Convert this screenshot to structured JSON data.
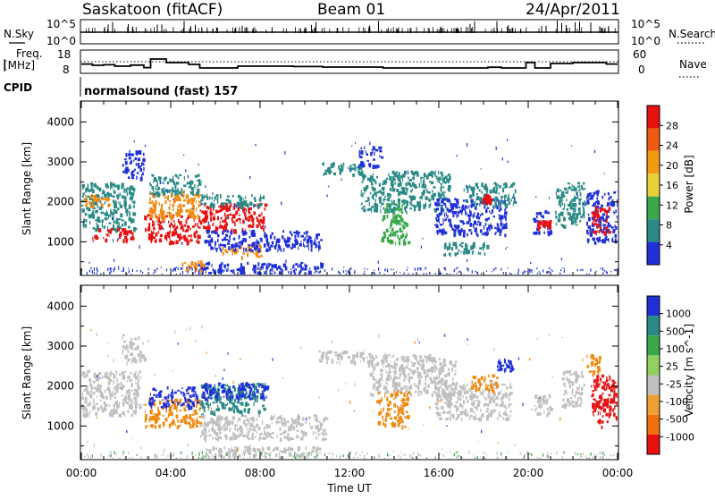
{
  "header": {
    "station": "Saskatoon (fitACF)",
    "beam": "Beam 01",
    "date": "24/Apr/2011"
  },
  "nsky_panel": {
    "left_label": "N.Sky",
    "left_ticks": [
      "10^5",
      "10^0"
    ],
    "right_label": "N.Search",
    "right_ticks": [
      "10^5",
      "10^0"
    ]
  },
  "freq_panel": {
    "left_label_1": "Freq.",
    "left_label_2": "[MHz]",
    "left_ticks": [
      "18",
      "8"
    ],
    "right_label": "Nave",
    "right_ticks": [
      "60",
      "0"
    ]
  },
  "cpid": {
    "label": "CPID",
    "value": "normalsound (fast) 157"
  },
  "x_axis": {
    "label": "Time UT",
    "ticks": [
      "00:00",
      "04:00",
      "08:00",
      "12:00",
      "16:00",
      "20:00",
      "00:00"
    ]
  },
  "colors": {
    "blue": "#2030d8",
    "teal": "#2a8a86",
    "green": "#3aa84a",
    "yellow": "#e8d038",
    "orange": "#f08a10",
    "red": "#e81010",
    "grey": "#c0c0c0"
  },
  "chart_data": [
    {
      "type": "line",
      "panel": "N.Sky / N.Search",
      "x": [
        0,
        2,
        3,
        4,
        6,
        8,
        10,
        12,
        14,
        16,
        18,
        20,
        21,
        22,
        23,
        24
      ],
      "series": [
        {
          "values": [
            1,
            1,
            1,
            1,
            1,
            1,
            1,
            1,
            1,
            1,
            1,
            1,
            1,
            1,
            1,
            1
          ]
        }
      ]
    },
    {
      "type": "line",
      "panel": "Freq. [MHz] / Nave",
      "ylim": [
        8,
        18
      ],
      "x": [
        0,
        0.5,
        1.0,
        1.5,
        2.2,
        2.8,
        3.1,
        3.8,
        4.8,
        5.3,
        7.0,
        9.5,
        10.8,
        13.5,
        16.3,
        18.2,
        18.8,
        19.9,
        20.3,
        21.0,
        22.0,
        23.5,
        24
      ],
      "series": [
        {
          "values": [
            12.2,
            11.5,
            11.8,
            11.0,
            11.6,
            10.2,
            15.0,
            13.0,
            12.0,
            10.0,
            11.0,
            10.8,
            10.5,
            10.0,
            10.0,
            10.4,
            10.0,
            13.0,
            10.0,
            12.5,
            13.0,
            12.2,
            12.2
          ]
        }
      ]
    },
    {
      "type": "heatmap",
      "panel": "Power",
      "ylabel": "Slant Range [km]",
      "xlabel": "Time UT",
      "xlim": [
        0,
        24
      ],
      "ylim": [
        180,
        4500
      ],
      "yticks": [
        1000,
        2000,
        3000,
        4000
      ],
      "colorbar": {
        "label": "Power [dB]",
        "ticks": [
          "28",
          "24",
          "20",
          "16",
          "12",
          "8",
          "4"
        ],
        "colors": [
          "#e81010",
          "#f05a10",
          "#f09a10",
          "#e8d038",
          "#3aa84a",
          "#2a8a86",
          "#2030d8"
        ]
      },
      "patches": [
        {
          "t0": 0.0,
          "t1": 2.4,
          "r0": 1300,
          "r1": 2500,
          "c": "teal"
        },
        {
          "t0": 0.4,
          "t1": 2.3,
          "r0": 1050,
          "r1": 1350,
          "c": "red"
        },
        {
          "t0": 0.0,
          "t1": 1.2,
          "r0": 1900,
          "r1": 2200,
          "c": "orange"
        },
        {
          "t0": 1.8,
          "t1": 2.8,
          "r0": 2600,
          "r1": 3300,
          "c": "blue"
        },
        {
          "t0": 2.8,
          "t1": 5.3,
          "r0": 1000,
          "r1": 1700,
          "c": "red"
        },
        {
          "t0": 3.0,
          "t1": 5.3,
          "r0": 1600,
          "r1": 2300,
          "c": "orange"
        },
        {
          "t0": 3.0,
          "t1": 5.3,
          "r0": 2200,
          "r1": 2700,
          "c": "teal"
        },
        {
          "t0": 5.3,
          "t1": 8.2,
          "r0": 1300,
          "r1": 2000,
          "c": "red"
        },
        {
          "t0": 5.3,
          "t1": 8.2,
          "r0": 1900,
          "r1": 2200,
          "c": "teal"
        },
        {
          "t0": 6.3,
          "t1": 8.0,
          "r0": 650,
          "r1": 950,
          "c": "orange"
        },
        {
          "t0": 5.5,
          "t1": 10.8,
          "r0": 800,
          "r1": 1300,
          "c": "blue"
        },
        {
          "t0": 5.2,
          "t1": 10.8,
          "r0": 230,
          "r1": 500,
          "c": "blue"
        },
        {
          "t0": 4.5,
          "t1": 5.5,
          "r0": 300,
          "r1": 550,
          "c": "orange"
        },
        {
          "t0": 10.6,
          "t1": 12.6,
          "r0": 2700,
          "r1": 3000,
          "c": "teal"
        },
        {
          "t0": 12.4,
          "t1": 13.4,
          "r0": 2900,
          "r1": 3400,
          "c": "blue"
        },
        {
          "t0": 12.5,
          "t1": 16.5,
          "r0": 1800,
          "r1": 2800,
          "c": "teal"
        },
        {
          "t0": 13.4,
          "t1": 14.6,
          "r0": 1000,
          "r1": 2000,
          "c": "green"
        },
        {
          "t0": 15.8,
          "t1": 19.0,
          "r0": 1200,
          "r1": 2100,
          "c": "blue"
        },
        {
          "t0": 16.2,
          "t1": 18.2,
          "r0": 700,
          "r1": 1000,
          "c": "teal"
        },
        {
          "t0": 17.2,
          "t1": 19.4,
          "r0": 1900,
          "r1": 2500,
          "c": "teal"
        },
        {
          "t0": 17.9,
          "t1": 18.3,
          "r0": 2000,
          "r1": 2200,
          "c": "red"
        },
        {
          "t0": 20.2,
          "t1": 21.0,
          "r0": 1200,
          "r1": 1800,
          "c": "blue"
        },
        {
          "t0": 20.4,
          "t1": 21.0,
          "r0": 1350,
          "r1": 1550,
          "c": "red"
        },
        {
          "t0": 21.2,
          "t1": 22.6,
          "r0": 1400,
          "r1": 2500,
          "c": "teal"
        },
        {
          "t0": 22.6,
          "t1": 24.0,
          "r0": 1000,
          "r1": 2300,
          "c": "blue"
        },
        {
          "t0": 22.8,
          "t1": 23.6,
          "r0": 1250,
          "r1": 1900,
          "c": "red"
        }
      ]
    },
    {
      "type": "heatmap",
      "panel": "Velocity",
      "ylabel": "Slant Range [km]",
      "xlabel": "Time UT",
      "xlim": [
        0,
        24
      ],
      "ylim": [
        180,
        4500
      ],
      "yticks": [
        1000,
        2000,
        3000,
        4000
      ],
      "colorbar": {
        "label": "Velocity [m s^-1]",
        "ticks": [
          "1000",
          "500",
          "100",
          "25",
          "-25",
          "-100",
          "-500",
          "-1000"
        ],
        "colors": [
          "#2030d8",
          "#2a8a86",
          "#3aa84a",
          "#90d060",
          "#c0c0c0",
          "#f0a030",
          "#f07010",
          "#e81010"
        ]
      },
      "patches": [
        {
          "t0": 0.0,
          "t1": 2.6,
          "r0": 1300,
          "r1": 2400,
          "c": "grey"
        },
        {
          "t0": 1.8,
          "t1": 2.8,
          "r0": 2600,
          "r1": 3300,
          "c": "grey"
        },
        {
          "t0": 2.8,
          "t1": 5.3,
          "r0": 1000,
          "r1": 1700,
          "c": "orange"
        },
        {
          "t0": 3.0,
          "t1": 5.2,
          "r0": 1500,
          "r1": 2000,
          "c": "blue"
        },
        {
          "t0": 5.3,
          "t1": 8.2,
          "r0": 1300,
          "r1": 2100,
          "c": "teal"
        },
        {
          "t0": 5.3,
          "t1": 8.3,
          "r0": 1700,
          "r1": 2100,
          "c": "blue"
        },
        {
          "t0": 5.3,
          "t1": 11.0,
          "r0": 700,
          "r1": 1300,
          "c": "grey"
        },
        {
          "t0": 5.5,
          "t1": 10.8,
          "r0": 250,
          "r1": 500,
          "c": "grey"
        },
        {
          "t0": 10.6,
          "t1": 13.0,
          "r0": 2600,
          "r1": 2900,
          "c": "grey"
        },
        {
          "t0": 12.8,
          "t1": 16.8,
          "r0": 1800,
          "r1": 2800,
          "c": "grey"
        },
        {
          "t0": 13.2,
          "t1": 14.6,
          "r0": 1000,
          "r1": 1900,
          "c": "orange"
        },
        {
          "t0": 15.8,
          "t1": 19.2,
          "r0": 1200,
          "r1": 2100,
          "c": "grey"
        },
        {
          "t0": 17.4,
          "t1": 18.6,
          "r0": 1900,
          "r1": 2300,
          "c": "orange"
        },
        {
          "t0": 18.6,
          "t1": 19.3,
          "r0": 2400,
          "r1": 2700,
          "c": "blue"
        },
        {
          "t0": 20.2,
          "t1": 21.0,
          "r0": 1300,
          "r1": 1800,
          "c": "grey"
        },
        {
          "t0": 21.5,
          "t1": 22.5,
          "r0": 1500,
          "r1": 2400,
          "c": "grey"
        },
        {
          "t0": 22.8,
          "t1": 24.0,
          "r0": 1000,
          "r1": 2300,
          "c": "red"
        },
        {
          "t0": 22.6,
          "t1": 23.2,
          "r0": 2300,
          "r1": 2800,
          "c": "orange"
        }
      ]
    }
  ]
}
